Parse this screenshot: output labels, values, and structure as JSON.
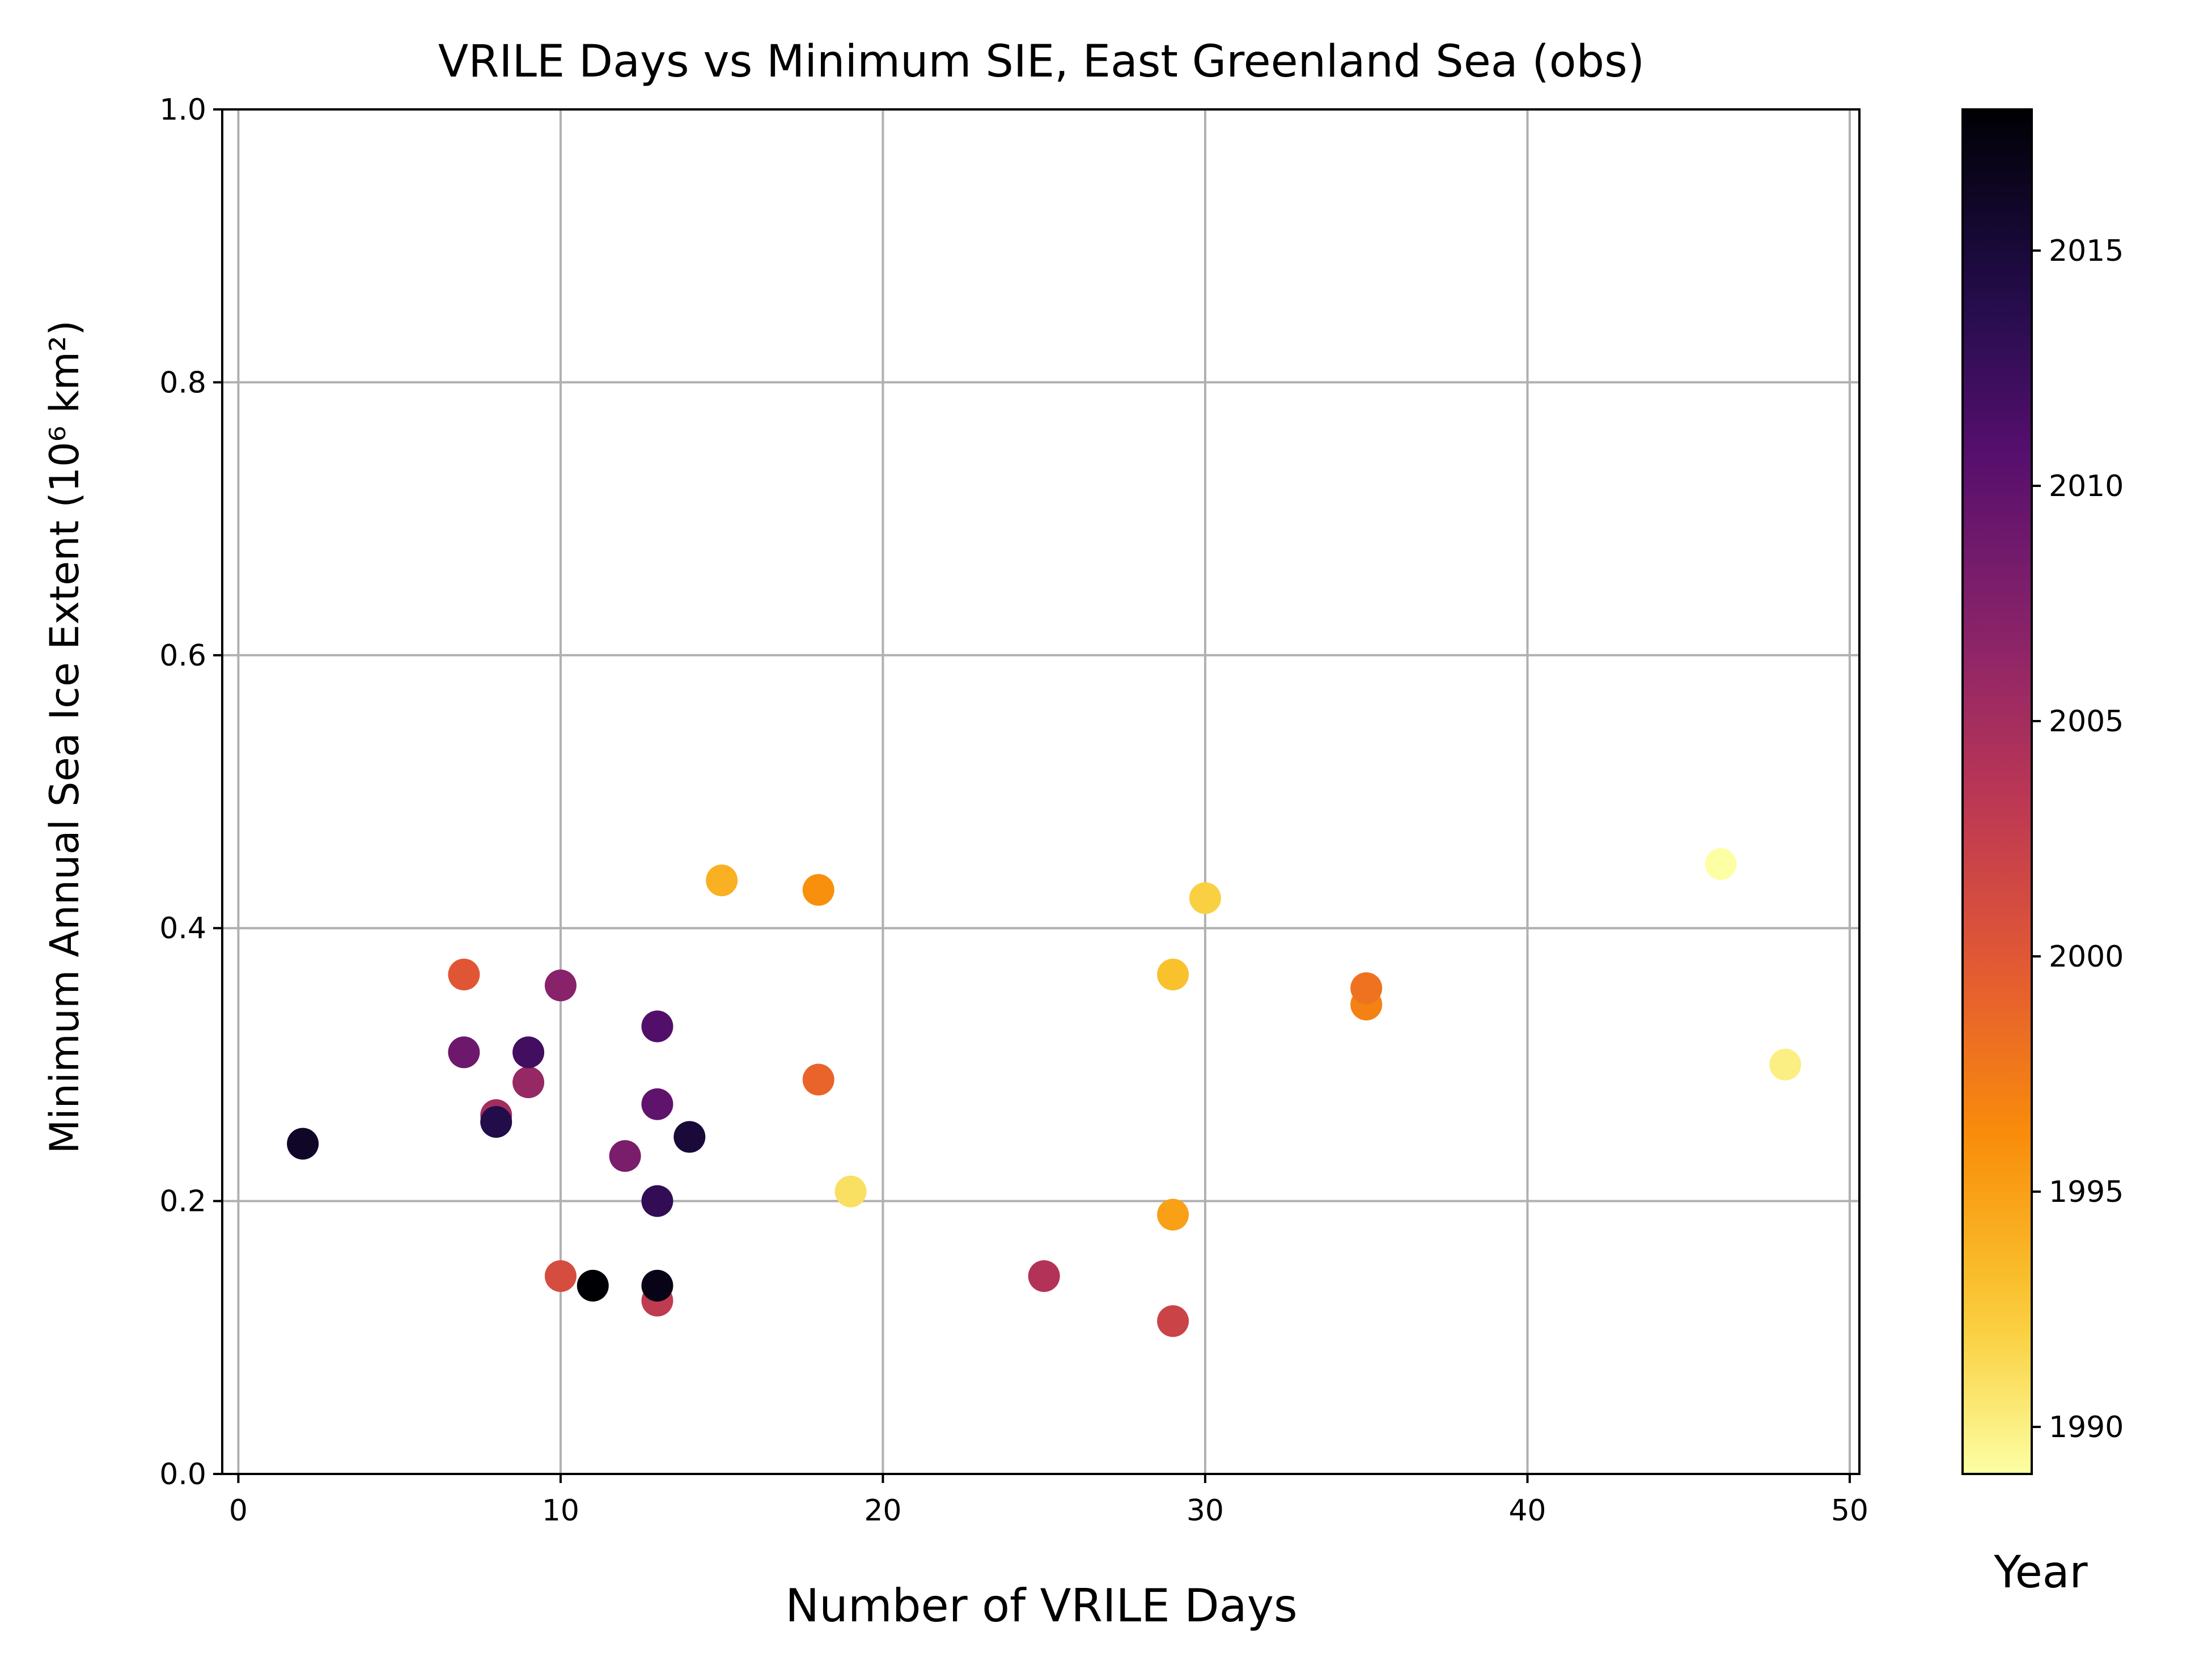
{
  "chart_data": {
    "type": "scatter",
    "title": "VRILE Days vs Minimum SIE, East Greenland Sea (obs)",
    "xlabel": "Number of VRILE Days",
    "ylabel": "Minimum Annual Sea Ice Extent (10⁶ km²)",
    "xlim": [
      -0.5,
      50.3
    ],
    "ylim": [
      0,
      1.0
    ],
    "xticks": [
      "0",
      "10",
      "20",
      "30",
      "40",
      "50"
    ],
    "yticks": [
      "0.0",
      "0.2",
      "0.4",
      "0.6",
      "0.8",
      "1.0"
    ],
    "grid": true,
    "colormap": "inferno_r",
    "colorbar": {
      "label": "Year",
      "range": [
        1989,
        2018
      ],
      "ticks": [
        "1990",
        "1995",
        "2000",
        "2005",
        "2010",
        "2015"
      ]
    },
    "points": [
      {
        "x": 46,
        "y": 0.447,
        "year": 1989
      },
      {
        "x": 48,
        "y": 0.3,
        "year": 1990
      },
      {
        "x": 19,
        "y": 0.207,
        "year": 1991
      },
      {
        "x": 30,
        "y": 0.422,
        "year": 1992
      },
      {
        "x": 29,
        "y": 0.366,
        "year": 1993
      },
      {
        "x": 15,
        "y": 0.435,
        "year": 1994
      },
      {
        "x": 29,
        "y": 0.19,
        "year": 1995
      },
      {
        "x": 18,
        "y": 0.428,
        "year": 1996
      },
      {
        "x": 35,
        "y": 0.344,
        "year": 1997
      },
      {
        "x": 35,
        "y": 0.356,
        "year": 1998
      },
      {
        "x": 18,
        "y": 0.289,
        "year": 1999
      },
      {
        "x": 7,
        "y": 0.366,
        "year": 2000
      },
      {
        "x": 10,
        "y": 0.145,
        "year": 2001
      },
      {
        "x": 29,
        "y": 0.112,
        "year": 2002
      },
      {
        "x": 13,
        "y": 0.127,
        "year": 2003
      },
      {
        "x": 25,
        "y": 0.145,
        "year": 2004
      },
      {
        "x": 8,
        "y": 0.263,
        "year": 2005
      },
      {
        "x": 9,
        "y": 0.287,
        "year": 2006
      },
      {
        "x": 10,
        "y": 0.358,
        "year": 2007
      },
      {
        "x": 12,
        "y": 0.233,
        "year": 2008
      },
      {
        "x": 7,
        "y": 0.309,
        "year": 2009
      },
      {
        "x": 13,
        "y": 0.271,
        "year": 2010
      },
      {
        "x": 13,
        "y": 0.328,
        "year": 2011
      },
      {
        "x": 9,
        "y": 0.309,
        "year": 2012
      },
      {
        "x": 13,
        "y": 0.2,
        "year": 2013
      },
      {
        "x": 8,
        "y": 0.258,
        "year": 2014
      },
      {
        "x": 14,
        "y": 0.247,
        "year": 2015
      },
      {
        "x": 2,
        "y": 0.242,
        "year": 2016
      },
      {
        "x": 13,
        "y": 0.138,
        "year": 2017
      },
      {
        "x": 11,
        "y": 0.138,
        "year": 2018
      }
    ]
  }
}
